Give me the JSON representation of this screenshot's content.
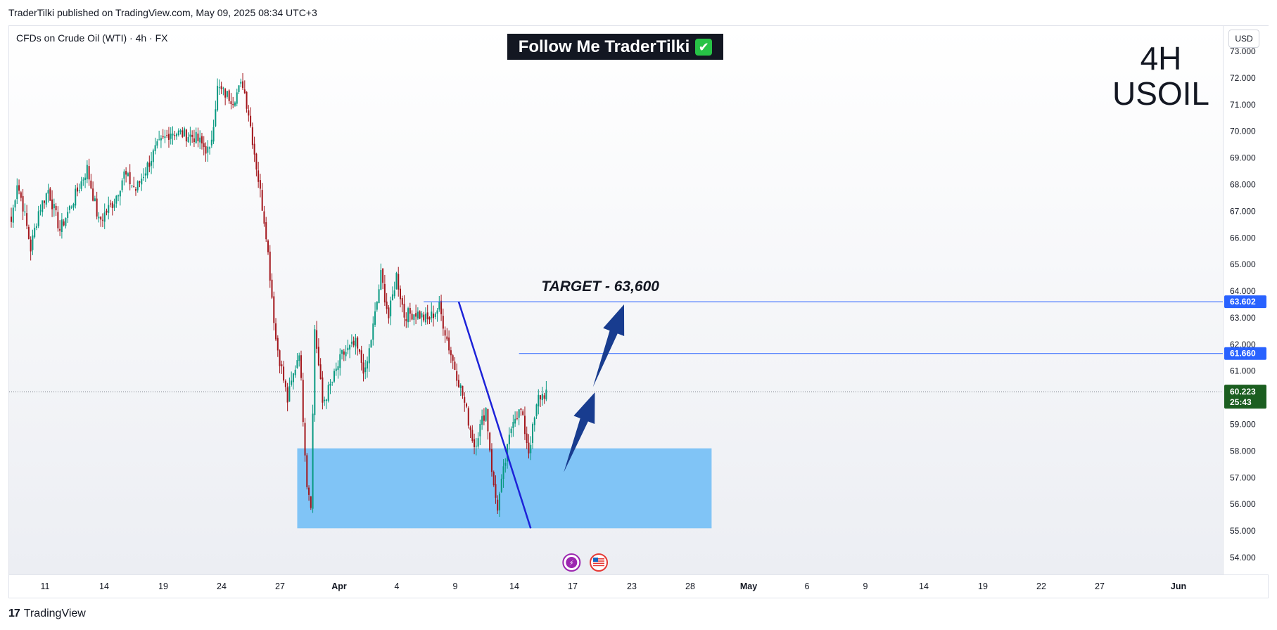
{
  "header": {
    "published": "TraderTilki published on TradingView.com, May 09, 2025 08:34 UTC+3"
  },
  "chart_header": {
    "symbol": "CFDs on Crude Oil (WTI) · 4h · FX",
    "follow_text": "Follow Me TraderTilki",
    "check_glyph": "✔",
    "timeframe_line1": "4H",
    "timeframe_line2": "USOIL"
  },
  "price_axis": {
    "currency_button": "USD"
  },
  "footer": {
    "brand": "TradingView",
    "brand_glyph": "17"
  },
  "colors": {
    "up": "#089981",
    "down": "#a3161c",
    "demand_zone": "#80c4f6",
    "trendline": "#1d22d8",
    "level_line": "#2962ff",
    "arrow": "#183c8f",
    "current_price": "#1b5e20"
  },
  "chart_data": {
    "type": "candlestick",
    "title": "",
    "xlabel": "",
    "ylabel": "",
    "ylim": [
      53.5,
      73.5
    ],
    "y_ticks": [
      54,
      55,
      56,
      57,
      58,
      59,
      60,
      61,
      62,
      63,
      64,
      65,
      66,
      67,
      68,
      69,
      70,
      71,
      72,
      73
    ],
    "y_tick_labels": [
      "54.000",
      "55.000",
      "56.000",
      "57.000",
      "58.000",
      "59.000",
      "60.000",
      "61.000",
      "62.000",
      "63.000",
      "64.000",
      "65.000",
      "66.000",
      "67.000",
      "68.000",
      "69.000",
      "70.000",
      "71.000",
      "72.000",
      "73.000"
    ],
    "x_ticks": [
      {
        "label": "11",
        "bold": false
      },
      {
        "label": "14",
        "bold": false
      },
      {
        "label": "19",
        "bold": false
      },
      {
        "label": "24",
        "bold": false
      },
      {
        "label": "27",
        "bold": false
      },
      {
        "label": "Apr",
        "bold": true
      },
      {
        "label": "4",
        "bold": false
      },
      {
        "label": "9",
        "bold": false
      },
      {
        "label": "14",
        "bold": false
      },
      {
        "label": "17",
        "bold": false
      },
      {
        "label": "23",
        "bold": false
      },
      {
        "label": "28",
        "bold": false
      },
      {
        "label": "May",
        "bold": true
      },
      {
        "label": "6",
        "bold": false
      },
      {
        "label": "9",
        "bold": false
      },
      {
        "label": "14",
        "bold": false
      },
      {
        "label": "19",
        "bold": false
      },
      {
        "label": "22",
        "bold": false
      },
      {
        "label": "27",
        "bold": false
      },
      {
        "label": "Jun",
        "bold": true
      }
    ],
    "price_path": [
      [
        0,
        66.6
      ],
      [
        3,
        68.1
      ],
      [
        6,
        67.2
      ],
      [
        10,
        65.6
      ],
      [
        14,
        67.0
      ],
      [
        19,
        67.8
      ],
      [
        25,
        66.3
      ],
      [
        33,
        67.6
      ],
      [
        39,
        68.6
      ],
      [
        45,
        66.6
      ],
      [
        53,
        67.4
      ],
      [
        58,
        68.4
      ],
      [
        64,
        67.8
      ],
      [
        74,
        69.3
      ],
      [
        82,
        70.0
      ],
      [
        94,
        69.8
      ],
      [
        102,
        69.2
      ],
      [
        106,
        71.6
      ],
      [
        114,
        71.2
      ],
      [
        119,
        71.8
      ],
      [
        122,
        70.7
      ],
      [
        126,
        68.7
      ],
      [
        131,
        66.2
      ],
      [
        136,
        62.2
      ],
      [
        142,
        59.9
      ],
      [
        148,
        61.8
      ],
      [
        152,
        56.8
      ],
      [
        154,
        56.1
      ],
      [
        156,
        62.6
      ],
      [
        160,
        59.8
      ],
      [
        165,
        60.6
      ],
      [
        170,
        61.6
      ],
      [
        177,
        62.0
      ],
      [
        182,
        60.9
      ],
      [
        187,
        63.1
      ],
      [
        190,
        64.6
      ],
      [
        194,
        63.0
      ],
      [
        198,
        64.6
      ],
      [
        202,
        63.1
      ],
      [
        208,
        63.2
      ],
      [
        214,
        62.9
      ],
      [
        220,
        63.4
      ],
      [
        225,
        61.9
      ],
      [
        232,
        60.1
      ],
      [
        238,
        58.2
      ],
      [
        244,
        59.6
      ],
      [
        248,
        56.6
      ],
      [
        250,
        55.9
      ],
      [
        253,
        57.2
      ],
      [
        258,
        59.3
      ],
      [
        262,
        59.5
      ],
      [
        266,
        58.0
      ],
      [
        271,
        60.0
      ],
      [
        275,
        60.2
      ]
    ],
    "zone": {
      "x_start": 147,
      "x_end": 360,
      "y_low": 55.1,
      "y_high": 58.1
    },
    "levels": [
      {
        "price": 63.602,
        "label": "63.602",
        "x_start": 212
      },
      {
        "price": 61.66,
        "label": "61.660",
        "x_start": 261
      }
    ],
    "trendline": {
      "start": [
        230,
        63.6
      ],
      "end": [
        267,
        55.1
      ]
    },
    "arrows": [
      {
        "from": [
          284,
          57.2
        ],
        "to": [
          300,
          60.2
        ]
      },
      {
        "from": [
          299,
          60.4
        ],
        "to": [
          315,
          63.5
        ]
      }
    ],
    "annotation": {
      "text": "TARGET - 63,600",
      "x": 305,
      "price": 64.0
    },
    "current_price": {
      "price": 60.223,
      "label": "60.223",
      "countdown": "25:43"
    },
    "event_icons": [
      {
        "x": 288,
        "name": "lightning-event",
        "glyph": "⚡"
      },
      {
        "x": 302,
        "name": "us-flag-event",
        "glyph": "US"
      }
    ]
  }
}
